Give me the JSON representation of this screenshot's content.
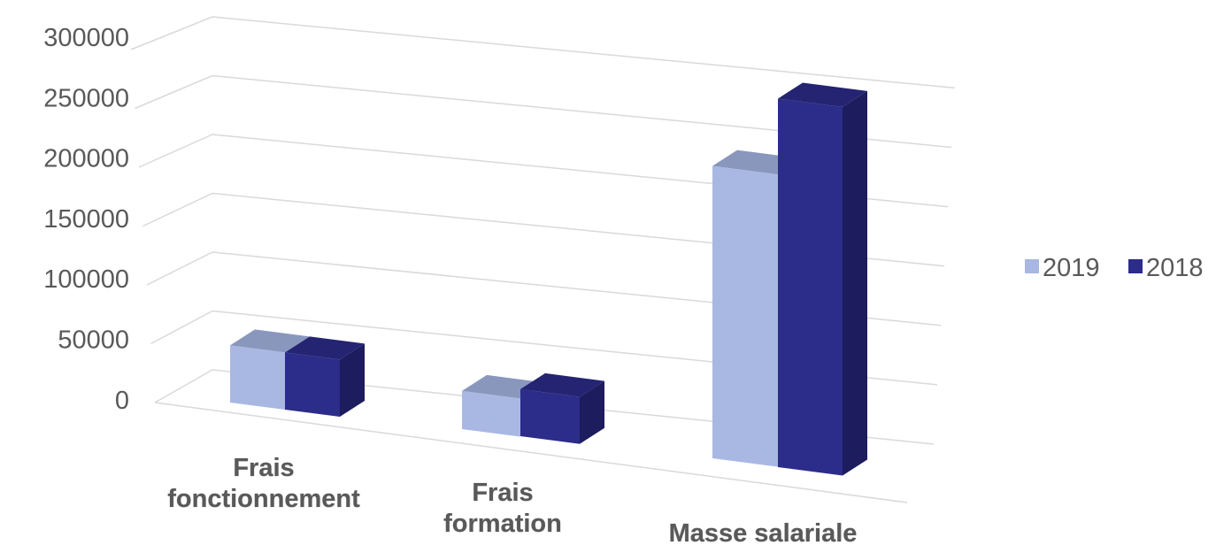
{
  "chart_data": {
    "type": "bar",
    "categories": [
      [
        "Frais",
        "fonctionnement"
      ],
      [
        "Frais",
        "formation"
      ],
      [
        "Masse salariale"
      ]
    ],
    "series": [
      {
        "name": "2019",
        "values": [
          45000,
          30000,
          230000
        ],
        "color": "#a9b8e2",
        "top_color": "#8a97bd",
        "side_color": "#8894c1"
      },
      {
        "name": "2018",
        "values": [
          45000,
          37000,
          290000
        ],
        "color": "#2c2c8a",
        "top_color": "#242473",
        "side_color": "#1c1c5e"
      }
    ],
    "y_ticks": [
      "300000",
      "250000",
      "200000",
      "150000",
      "100000",
      "50000",
      "0"
    ],
    "ylim": [
      0,
      300000
    ],
    "grid": true,
    "legend_position": "right"
  }
}
